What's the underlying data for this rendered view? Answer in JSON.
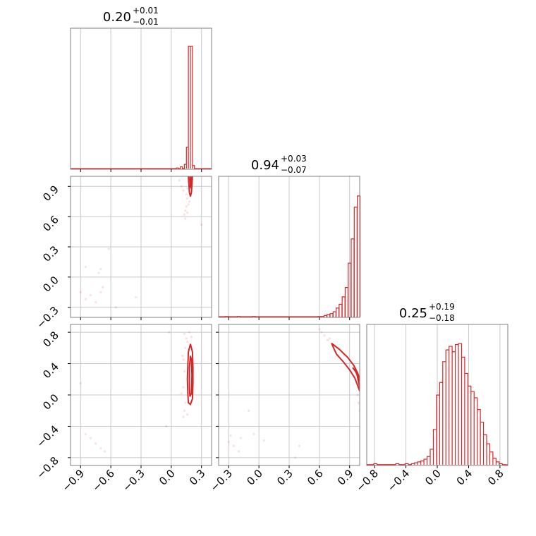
{
  "chart_data": {
    "type": "corner",
    "series_color": "#d62728",
    "grid": true,
    "parameters": [
      {
        "median": "0.20",
        "upper": "+0.01",
        "lower": "−0.01",
        "range": [
          -1.0,
          0.4
        ],
        "ticks": [
          -0.9,
          -0.6,
          -0.3,
          0.0,
          0.3
        ],
        "tick_labels": [
          "−0.9",
          "−0.6",
          "−0.3",
          "0.0",
          "0.3"
        ]
      },
      {
        "median": "0.94",
        "upper": "+0.03",
        "lower": "−0.07",
        "range": [
          -0.4,
          1.0
        ],
        "ticks": [
          -0.3,
          0.0,
          0.3,
          0.6,
          0.9
        ],
        "tick_labels": [
          "−0.3",
          "0.0",
          "0.3",
          "0.6",
          "0.9"
        ]
      },
      {
        "median": "0.25",
        "upper": "+0.19",
        "lower": "−0.18",
        "range": [
          -0.9,
          0.9
        ],
        "ticks": [
          -0.8,
          -0.4,
          0.0,
          0.4,
          0.8
        ],
        "tick_labels": [
          "−0.8",
          "−0.4",
          "0.0",
          "0.4",
          "0.8"
        ]
      }
    ],
    "histograms": [
      {
        "bin_width": 0.02,
        "bins": [
          {
            "x": 0.06,
            "count": 1
          },
          {
            "x": 0.1,
            "count": 2
          },
          {
            "x": 0.14,
            "count": 4
          },
          {
            "x": 0.16,
            "count": 18
          },
          {
            "x": 0.18,
            "count": 100
          },
          {
            "x": 0.2,
            "count": 100
          },
          {
            "x": 0.22,
            "count": 3
          }
        ],
        "ymax": 110
      },
      {
        "bin_width": 0.028,
        "bins": [
          {
            "x": -0.32,
            "count": 1
          },
          {
            "x": -0.2,
            "count": 1
          },
          {
            "x": -0.05,
            "count": 1
          },
          {
            "x": 0.6,
            "count": 1
          },
          {
            "x": 0.63,
            "count": 1
          },
          {
            "x": 0.66,
            "count": 2
          },
          {
            "x": 0.69,
            "count": 3
          },
          {
            "x": 0.72,
            "count": 4
          },
          {
            "x": 0.75,
            "count": 6
          },
          {
            "x": 0.78,
            "count": 10
          },
          {
            "x": 0.81,
            "count": 14
          },
          {
            "x": 0.84,
            "count": 22
          },
          {
            "x": 0.87,
            "count": 32
          },
          {
            "x": 0.9,
            "count": 58
          },
          {
            "x": 0.93,
            "count": 84
          },
          {
            "x": 0.96,
            "count": 118
          },
          {
            "x": 0.99,
            "count": 130
          }
        ],
        "ymax": 145
      },
      {
        "bin_width": 0.04,
        "bins": [
          {
            "x": -0.87,
            "count": 1
          },
          {
            "x": -0.83,
            "count": 1
          },
          {
            "x": -0.79,
            "count": 2
          },
          {
            "x": -0.75,
            "count": 1
          },
          {
            "x": -0.71,
            "count": 1
          },
          {
            "x": -0.67,
            "count": 1
          },
          {
            "x": -0.63,
            "count": 1
          },
          {
            "x": -0.59,
            "count": 1
          },
          {
            "x": -0.55,
            "count": 1
          },
          {
            "x": -0.51,
            "count": 2
          },
          {
            "x": -0.47,
            "count": 1
          },
          {
            "x": -0.43,
            "count": 1
          },
          {
            "x": -0.39,
            "count": 2
          },
          {
            "x": -0.35,
            "count": 1
          },
          {
            "x": -0.31,
            "count": 2
          },
          {
            "x": -0.27,
            "count": 3
          },
          {
            "x": -0.23,
            "count": 4
          },
          {
            "x": -0.19,
            "count": 5
          },
          {
            "x": -0.15,
            "count": 7
          },
          {
            "x": -0.11,
            "count": 10
          },
          {
            "x": -0.07,
            "count": 18
          },
          {
            "x": -0.03,
            "count": 40
          },
          {
            "x": 0.01,
            "count": 78
          },
          {
            "x": 0.05,
            "count": 92
          },
          {
            "x": 0.09,
            "count": 115
          },
          {
            "x": 0.13,
            "count": 128
          },
          {
            "x": 0.17,
            "count": 132
          },
          {
            "x": 0.21,
            "count": 126
          },
          {
            "x": 0.25,
            "count": 134
          },
          {
            "x": 0.29,
            "count": 135
          },
          {
            "x": 0.33,
            "count": 120
          },
          {
            "x": 0.37,
            "count": 102
          },
          {
            "x": 0.41,
            "count": 88
          },
          {
            "x": 0.45,
            "count": 82
          },
          {
            "x": 0.49,
            "count": 75
          },
          {
            "x": 0.53,
            "count": 62
          },
          {
            "x": 0.57,
            "count": 48
          },
          {
            "x": 0.61,
            "count": 34
          },
          {
            "x": 0.65,
            "count": 24
          },
          {
            "x": 0.69,
            "count": 15
          },
          {
            "x": 0.73,
            "count": 8
          },
          {
            "x": 0.77,
            "count": 4
          },
          {
            "x": 0.81,
            "count": 2
          },
          {
            "x": 0.85,
            "count": 1
          }
        ],
        "ymax": 150
      }
    ],
    "pairs": [
      {
        "row": 1,
        "col": 0,
        "contours": [
          [
            [
              0.17,
              1.0
            ],
            [
              0.175,
              0.92
            ],
            [
              0.18,
              0.84
            ],
            [
              0.19,
              0.8
            ],
            [
              0.2,
              0.84
            ],
            [
              0.205,
              0.92
            ],
            [
              0.21,
              1.0
            ]
          ],
          [
            [
              0.185,
              1.0
            ],
            [
              0.19,
              0.9
            ],
            [
              0.195,
              0.88
            ],
            [
              0.2,
              0.92
            ],
            [
              0.2,
              1.0
            ]
          ]
        ],
        "points": [
          [
            0.17,
            0.95
          ],
          [
            0.16,
            0.88
          ],
          [
            0.15,
            0.82
          ],
          [
            0.16,
            0.78
          ],
          [
            0.18,
            0.75
          ],
          [
            0.17,
            0.72
          ],
          [
            0.15,
            0.7
          ],
          [
            0.14,
            0.66
          ],
          [
            0.13,
            0.62
          ],
          [
            0.14,
            0.58
          ],
          [
            0.16,
            0.64
          ],
          [
            0.12,
            0.86
          ],
          [
            0.1,
            0.9
          ],
          [
            0.08,
            0.96
          ],
          [
            0.3,
            0.52
          ],
          [
            -0.7,
            0.08
          ],
          [
            -0.72,
            0.04
          ],
          [
            -0.8,
            -0.18
          ],
          [
            -0.85,
            -0.22
          ],
          [
            -0.9,
            -0.15
          ],
          [
            -0.75,
            -0.25
          ],
          [
            -0.68,
            -0.1
          ],
          [
            -0.7,
            -0.15
          ],
          [
            -0.35,
            -0.2
          ],
          [
            -0.55,
            -0.3
          ],
          [
            -0.62,
            0.28
          ],
          [
            -0.85,
            0.1
          ]
        ]
      },
      {
        "row": 2,
        "col": 0,
        "contours": [
          [
            [
              0.19,
              0.65
            ],
            [
              0.17,
              0.55
            ],
            [
              0.165,
              0.4
            ],
            [
              0.16,
              0.2
            ],
            [
              0.165,
              0.0
            ],
            [
              0.17,
              -0.1
            ],
            [
              0.19,
              -0.12
            ],
            [
              0.21,
              -0.05
            ],
            [
              0.215,
              0.15
            ],
            [
              0.215,
              0.35
            ],
            [
              0.21,
              0.55
            ],
            [
              0.19,
              0.65
            ]
          ],
          [
            [
              0.19,
              0.5
            ],
            [
              0.18,
              0.35
            ],
            [
              0.18,
              0.1
            ],
            [
              0.185,
              -0.02
            ],
            [
              0.2,
              0.02
            ],
            [
              0.205,
              0.25
            ],
            [
              0.2,
              0.45
            ],
            [
              0.19,
              0.5
            ]
          ]
        ],
        "points": [
          [
            0.15,
            0.72
          ],
          [
            0.13,
            0.78
          ],
          [
            0.16,
            0.68
          ],
          [
            0.14,
            0.6
          ],
          [
            0.12,
            0.45
          ],
          [
            0.13,
            0.3
          ],
          [
            0.12,
            0.1
          ],
          [
            0.14,
            -0.1
          ],
          [
            0.13,
            -0.2
          ],
          [
            0.12,
            -0.28
          ],
          [
            0.16,
            -0.25
          ],
          [
            0.1,
            0.02
          ],
          [
            0.11,
            0.5
          ],
          [
            0.18,
            0.8
          ],
          [
            0.2,
            0.74
          ],
          [
            -0.05,
            -0.4
          ],
          [
            -0.85,
            -0.5
          ],
          [
            -0.8,
            -0.55
          ],
          [
            -0.75,
            -0.62
          ],
          [
            -0.7,
            -0.68
          ],
          [
            -0.66,
            -0.72
          ],
          [
            -0.9,
            0.15
          ],
          [
            -0.02,
            0.8
          ]
        ]
      },
      {
        "row": 2,
        "col": 1,
        "contours": [
          [
            [
              0.72,
              0.66
            ],
            [
              0.8,
              0.58
            ],
            [
              0.88,
              0.48
            ],
            [
              0.94,
              0.38
            ],
            [
              0.98,
              0.28
            ],
            [
              1.0,
              0.2
            ],
            [
              1.0,
              0.05
            ],
            [
              0.98,
              0.12
            ],
            [
              0.95,
              0.22
            ],
            [
              0.9,
              0.32
            ],
            [
              0.84,
              0.42
            ],
            [
              0.77,
              0.52
            ],
            [
              0.72,
              0.66
            ]
          ],
          [
            [
              0.93,
              0.35
            ],
            [
              0.97,
              0.28
            ],
            [
              1.0,
              0.1
            ],
            [
              0.99,
              0.22
            ],
            [
              0.95,
              0.32
            ],
            [
              0.93,
              0.35
            ]
          ]
        ],
        "points": [
          [
            0.62,
            0.8
          ],
          [
            0.65,
            0.76
          ],
          [
            0.6,
            0.84
          ],
          [
            0.68,
            0.7
          ],
          [
            0.7,
            0.72
          ],
          [
            0.99,
            -0.1
          ],
          [
            1.0,
            -0.2
          ],
          [
            0.98,
            0.0
          ],
          [
            -0.1,
            -0.2
          ],
          [
            0.36,
            -0.8
          ],
          [
            0.4,
            -0.65
          ],
          [
            -0.3,
            -0.6
          ],
          [
            -0.25,
            -0.65
          ],
          [
            -0.2,
            -0.72
          ],
          [
            -0.18,
            -0.55
          ],
          [
            -0.05,
            -0.5
          ],
          [
            0.05,
            -0.58
          ],
          [
            -0.28,
            -0.52
          ]
        ]
      }
    ]
  }
}
